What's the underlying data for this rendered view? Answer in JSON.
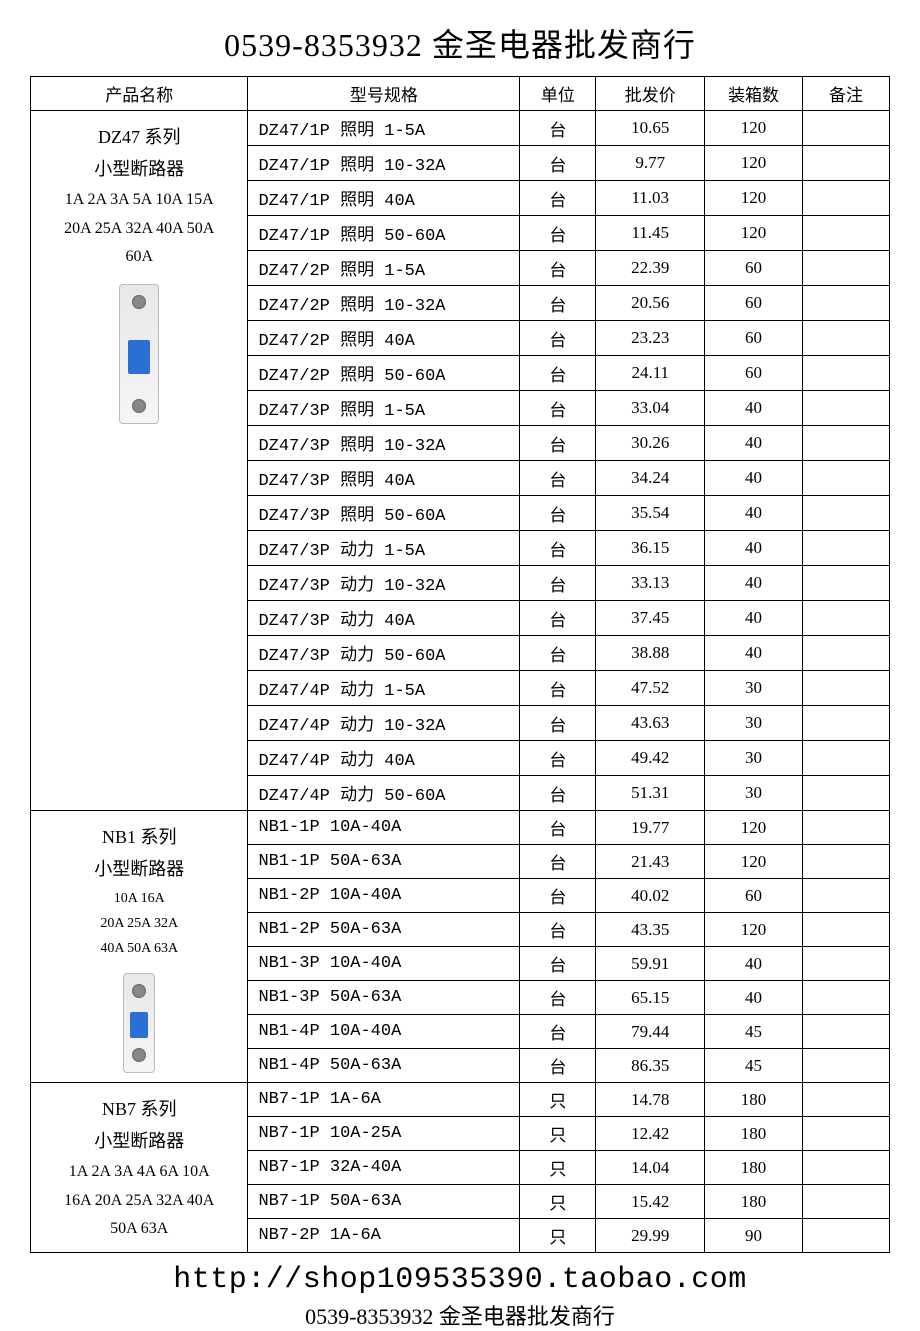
{
  "header_title": "0539-8353932 金圣电器批发商行",
  "footer_url": "http://shop109535390.taobao.com",
  "footer_text": "0539-8353932 金圣电器批发商行",
  "columns": {
    "name": "产品名称",
    "model": "型号规格",
    "unit": "单位",
    "price": "批发价",
    "qty": "装箱数",
    "note": "备注"
  },
  "groups": [
    {
      "title": "DZ47 系列",
      "subtitle": "小型断路器",
      "specs": [
        "1A 2A 3A 5A 10A 15A",
        "20A 25A 32A 40A 50A",
        "60A"
      ],
      "spec_small": false,
      "show_device": true,
      "device_small": false,
      "rows": [
        {
          "model": "DZ47/1P 照明 1-5A",
          "unit": "台",
          "price": "10.65",
          "qty": "120",
          "note": ""
        },
        {
          "model": "DZ47/1P 照明 10-32A",
          "unit": "台",
          "price": "9.77",
          "qty": "120",
          "note": ""
        },
        {
          "model": "DZ47/1P 照明 40A",
          "unit": "台",
          "price": "11.03",
          "qty": "120",
          "note": ""
        },
        {
          "model": "DZ47/1P 照明 50-60A",
          "unit": "台",
          "price": "11.45",
          "qty": "120",
          "note": ""
        },
        {
          "model": "DZ47/2P 照明 1-5A",
          "unit": "台",
          "price": "22.39",
          "qty": "60",
          "note": ""
        },
        {
          "model": "DZ47/2P 照明 10-32A",
          "unit": "台",
          "price": "20.56",
          "qty": "60",
          "note": ""
        },
        {
          "model": "DZ47/2P 照明 40A",
          "unit": "台",
          "price": "23.23",
          "qty": "60",
          "note": ""
        },
        {
          "model": "DZ47/2P 照明 50-60A",
          "unit": "台",
          "price": "24.11",
          "qty": "60",
          "note": ""
        },
        {
          "model": "DZ47/3P 照明 1-5A",
          "unit": "台",
          "price": "33.04",
          "qty": "40",
          "note": ""
        },
        {
          "model": "DZ47/3P 照明 10-32A",
          "unit": "台",
          "price": "30.26",
          "qty": "40",
          "note": ""
        },
        {
          "model": "DZ47/3P 照明 40A",
          "unit": "台",
          "price": "34.24",
          "qty": "40",
          "note": ""
        },
        {
          "model": "DZ47/3P 照明 50-60A",
          "unit": "台",
          "price": "35.54",
          "qty": "40",
          "note": ""
        },
        {
          "model": "DZ47/3P 动力 1-5A",
          "unit": "台",
          "price": "36.15",
          "qty": "40",
          "note": ""
        },
        {
          "model": "DZ47/3P 动力 10-32A",
          "unit": "台",
          "price": "33.13",
          "qty": "40",
          "note": ""
        },
        {
          "model": "DZ47/3P 动力 40A",
          "unit": "台",
          "price": "37.45",
          "qty": "40",
          "note": ""
        },
        {
          "model": "DZ47/3P 动力 50-60A",
          "unit": "台",
          "price": "38.88",
          "qty": "40",
          "note": ""
        },
        {
          "model": "DZ47/4P 动力 1-5A",
          "unit": "台",
          "price": "47.52",
          "qty": "30",
          "note": ""
        },
        {
          "model": "DZ47/4P 动力 10-32A",
          "unit": "台",
          "price": "43.63",
          "qty": "30",
          "note": ""
        },
        {
          "model": "DZ47/4P 动力 40A",
          "unit": "台",
          "price": "49.42",
          "qty": "30",
          "note": ""
        },
        {
          "model": "DZ47/4P 动力 50-60A",
          "unit": "台",
          "price": "51.31",
          "qty": "30",
          "note": ""
        }
      ]
    },
    {
      "title": "NB1 系列",
      "subtitle": "小型断路器",
      "specs": [
        "10A 16A",
        "20A 25A 32A",
        "40A 50A 63A"
      ],
      "spec_small": true,
      "show_device": true,
      "device_small": true,
      "rows": [
        {
          "model": "NB1-1P 10A-40A",
          "unit": "台",
          "price": "19.77",
          "qty": "120",
          "note": ""
        },
        {
          "model": "NB1-1P 50A-63A",
          "unit": "台",
          "price": "21.43",
          "qty": "120",
          "note": ""
        },
        {
          "model": "NB1-2P 10A-40A",
          "unit": "台",
          "price": "40.02",
          "qty": "60",
          "note": ""
        },
        {
          "model": "NB1-2P 50A-63A",
          "unit": "台",
          "price": "43.35",
          "qty": "120",
          "note": ""
        },
        {
          "model": "NB1-3P 10A-40A",
          "unit": "台",
          "price": "59.91",
          "qty": "40",
          "note": ""
        },
        {
          "model": "NB1-3P 50A-63A",
          "unit": "台",
          "price": "65.15",
          "qty": "40",
          "note": ""
        },
        {
          "model": "NB1-4P 10A-40A",
          "unit": "台",
          "price": "79.44",
          "qty": "45",
          "note": ""
        },
        {
          "model": "NB1-4P 50A-63A",
          "unit": "台",
          "price": "86.35",
          "qty": "45",
          "note": ""
        }
      ]
    },
    {
      "title": "NB7 系列",
      "subtitle": "小型断路器",
      "specs": [
        "1A 2A 3A 4A 6A 10A",
        "16A 20A 25A 32A 40A",
        "50A 63A"
      ],
      "spec_small": false,
      "show_device": false,
      "device_small": false,
      "rows": [
        {
          "model": "NB7-1P 1A-6A",
          "unit": "只",
          "price": "14.78",
          "qty": "180",
          "note": ""
        },
        {
          "model": "NB7-1P 10A-25A",
          "unit": "只",
          "price": "12.42",
          "qty": "180",
          "note": ""
        },
        {
          "model": "NB7-1P 32A-40A",
          "unit": "只",
          "price": "14.04",
          "qty": "180",
          "note": ""
        },
        {
          "model": "NB7-1P 50A-63A",
          "unit": "只",
          "price": "15.42",
          "qty": "180",
          "note": ""
        },
        {
          "model": "NB7-2P 1A-6A",
          "unit": "只",
          "price": "29.99",
          "qty": "90",
          "note": ""
        }
      ]
    }
  ]
}
